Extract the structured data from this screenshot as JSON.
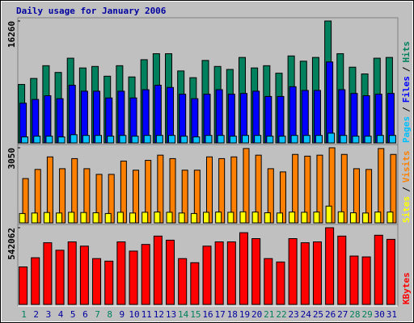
{
  "chart_data": [
    {
      "type": "bar",
      "title": "Daily usage for January 2006",
      "ylim": [
        0,
        16260
      ],
      "yticks": [
        16260
      ],
      "legend_separator": "/",
      "series": [
        {
          "name": "Hits",
          "color": "#00805c",
          "values": [
            7800,
            8600,
            10300,
            9400,
            11300,
            10000,
            10200,
            8900,
            10300,
            8800,
            11100,
            11900,
            11900,
            9600,
            8700,
            11000,
            10200,
            9800,
            11400,
            10000,
            10300,
            9300,
            11600,
            10900,
            11400,
            16260,
            11900,
            10100,
            9200,
            11300,
            11400
          ]
        },
        {
          "name": "Files",
          "color": "#0000ff",
          "values": [
            5300,
            5800,
            6300,
            5900,
            7700,
            6900,
            6900,
            6000,
            6900,
            6000,
            7100,
            7700,
            7400,
            6500,
            5900,
            6500,
            7100,
            6500,
            6600,
            6900,
            6200,
            6200,
            7500,
            7000,
            7000,
            10800,
            7100,
            6600,
            6300,
            6500,
            6600
          ]
        },
        {
          "name": "Pages",
          "color": "#00c0ff",
          "values": [
            800,
            900,
            900,
            800,
            1100,
            1000,
            1000,
            900,
            1000,
            900,
            1000,
            1000,
            1000,
            900,
            800,
            1000,
            1000,
            900,
            1000,
            1000,
            900,
            900,
            1000,
            1000,
            1000,
            1300,
            1000,
            900,
            900,
            1000,
            1000
          ]
        }
      ]
    },
    {
      "type": "bar",
      "ylim": [
        0,
        3050
      ],
      "yticks": [
        3050
      ],
      "legend_separator": "/",
      "series": [
        {
          "name": "Visits",
          "color": "#ff8000",
          "values": [
            1800,
            2170,
            2680,
            2200,
            2610,
            2200,
            1970,
            1970,
            2510,
            2140,
            2540,
            2750,
            2610,
            2140,
            2140,
            2680,
            2610,
            2680,
            3020,
            2750,
            2200,
            2070,
            2780,
            2710,
            2750,
            3050,
            2780,
            2200,
            2170,
            3020,
            2780
          ]
        },
        {
          "name": "Sites",
          "color": "#ffff00",
          "values": [
            380,
            400,
            420,
            400,
            430,
            420,
            410,
            380,
            430,
            400,
            430,
            440,
            430,
            400,
            380,
            430,
            440,
            430,
            450,
            440,
            410,
            400,
            440,
            430,
            440,
            680,
            450,
            410,
            400,
            440,
            440
          ]
        }
      ]
    },
    {
      "type": "bar",
      "ylim": [
        0,
        542062
      ],
      "yticks": [
        542062
      ],
      "categories": [
        "1",
        "2",
        "3",
        "4",
        "5",
        "6",
        "7",
        "8",
        "9",
        "10",
        "11",
        "12",
        "13",
        "14",
        "15",
        "16",
        "17",
        "18",
        "19",
        "20",
        "21",
        "22",
        "23",
        "24",
        "25",
        "26",
        "27",
        "28",
        "29",
        "30",
        "31"
      ],
      "category_colors": [
        "#00805c",
        "#0000a0",
        "#0000a0",
        "#0000a0",
        "#0000a0",
        "#0000a0",
        "#00805c",
        "#00805c",
        "#0000a0",
        "#0000a0",
        "#0000a0",
        "#0000a0",
        "#0000a0",
        "#00805c",
        "#00805c",
        "#0000a0",
        "#0000a0",
        "#0000a0",
        "#0000a0",
        "#0000a0",
        "#00805c",
        "#00805c",
        "#0000a0",
        "#0000a0",
        "#0000a0",
        "#0000a0",
        "#0000a0",
        "#00805c",
        "#00805c",
        "#0000a0",
        "#0000a0"
      ],
      "series": [
        {
          "name": "KBytes",
          "color": "#ff0000",
          "values": [
            265000,
            330000,
            436000,
            383000,
            442000,
            412000,
            324000,
            306000,
            442000,
            377000,
            424000,
            483000,
            454000,
            324000,
            295000,
            412000,
            442000,
            442000,
            507000,
            465000,
            324000,
            300000,
            465000,
            436000,
            442000,
            542062,
            483000,
            342000,
            336000,
            489000,
            460000
          ]
        }
      ]
    }
  ]
}
